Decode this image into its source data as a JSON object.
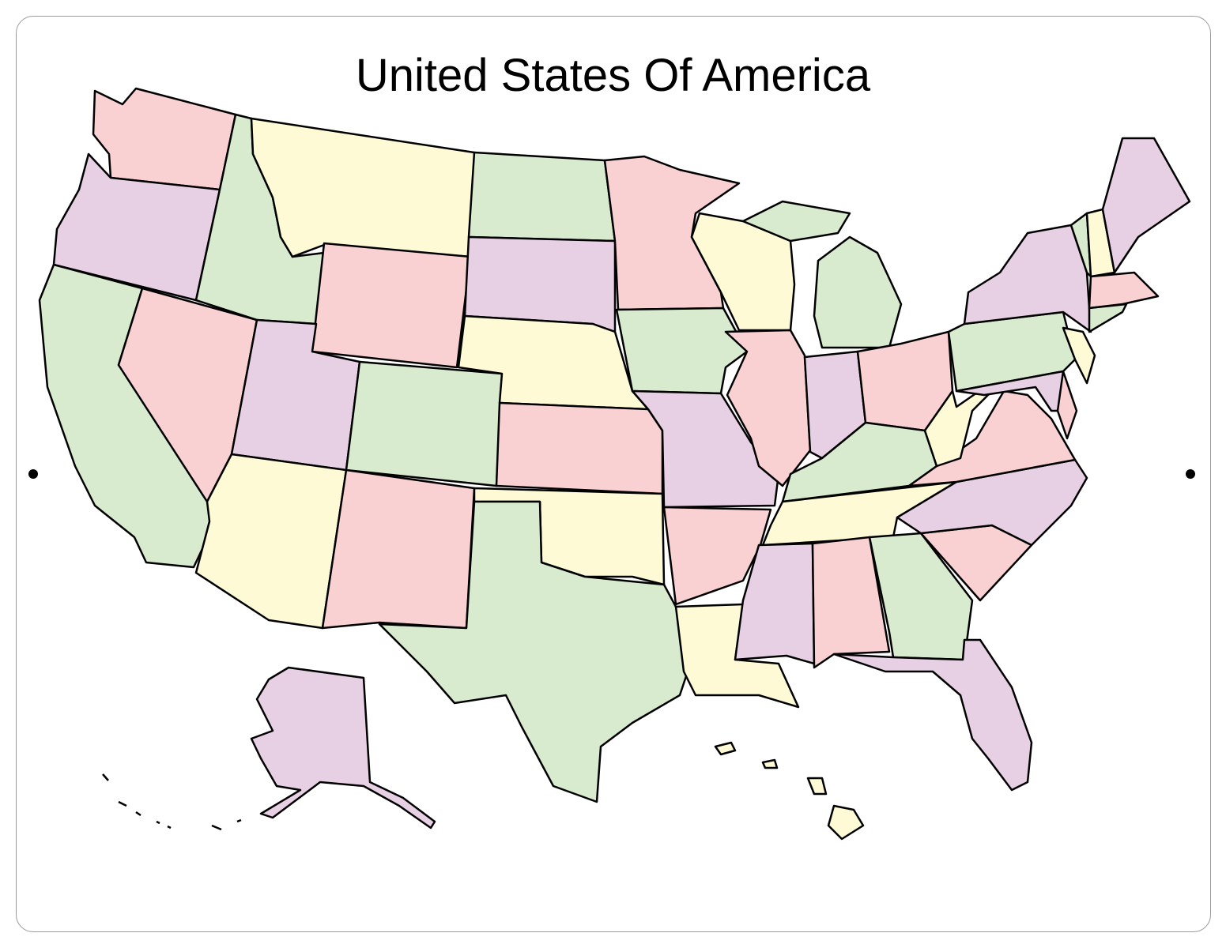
{
  "title": "United States Of America",
  "colors": {
    "pink": "#f9d1d3",
    "yellow": "#fdfad5",
    "green": "#d9ebcf",
    "purple": "#e8d0e4",
    "outline": "#000000"
  }
}
